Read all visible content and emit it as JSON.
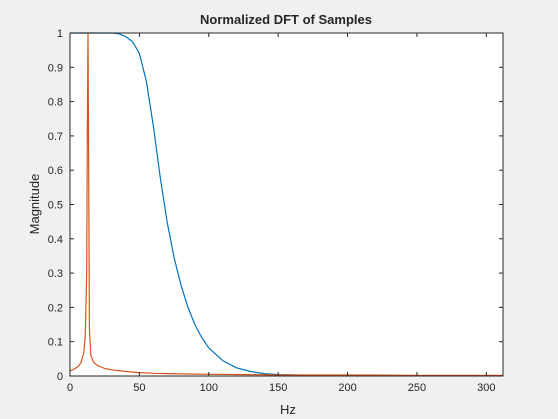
{
  "colors": {
    "figure_background": "#f0f0f0",
    "axes_background": "#ffffff",
    "axes_line": "#262626",
    "text": "#262626"
  },
  "chart_data": {
    "type": "line",
    "title": "Normalized DFT of Samples",
    "xlabel": "Hz",
    "ylabel": "Magnitude",
    "xlim": [
      0,
      312
    ],
    "ylim": [
      0,
      1
    ],
    "xticks": [
      0,
      50,
      100,
      150,
      200,
      250,
      300
    ],
    "yticks": [
      0,
      0.1,
      0.2,
      0.3,
      0.4,
      0.5,
      0.6,
      0.7,
      0.8,
      0.9,
      1
    ],
    "grid": false,
    "legend": "none",
    "series": [
      {
        "color": "#0072bd",
        "x": [
          0,
          10,
          20,
          30,
          35,
          40,
          45,
          50,
          55,
          60,
          65,
          70,
          75,
          80,
          85,
          90,
          95,
          100,
          110,
          120,
          130,
          140,
          150,
          175,
          200,
          250,
          312
        ],
        "y": [
          1,
          1,
          1,
          1,
          0.998,
          0.99,
          0.975,
          0.94,
          0.86,
          0.73,
          0.58,
          0.45,
          0.345,
          0.265,
          0.2,
          0.15,
          0.112,
          0.082,
          0.045,
          0.024,
          0.013,
          0.007,
          0.004,
          0.002,
          0.001,
          0.001,
          0.001
        ]
      },
      {
        "color": "#d95319",
        "x": [
          0,
          3,
          6,
          8,
          10,
          11,
          12,
          12.5,
          13,
          13.5,
          14,
          15,
          17,
          20,
          25,
          30,
          40,
          50,
          60,
          70,
          80,
          100,
          130,
          150,
          200,
          250,
          312
        ],
        "y": [
          0.015,
          0.02,
          0.028,
          0.04,
          0.07,
          0.12,
          0.3,
          0.7,
          1,
          0.6,
          0.14,
          0.06,
          0.04,
          0.03,
          0.022,
          0.018,
          0.013,
          0.01,
          0.008,
          0.007,
          0.006,
          0.005,
          0.004,
          0.003,
          0.003,
          0.002,
          0.002
        ]
      }
    ]
  }
}
